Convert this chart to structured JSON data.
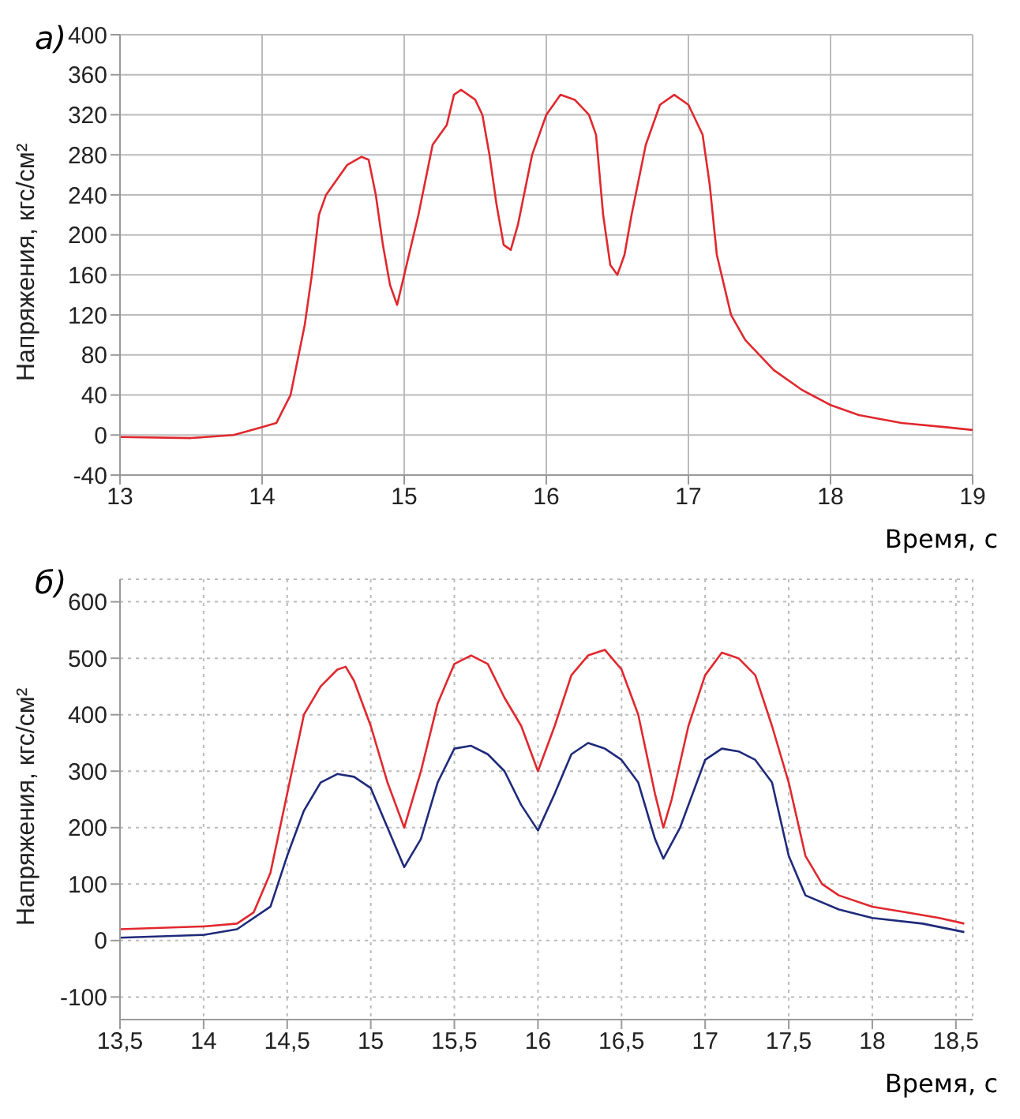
{
  "chart_data": [
    {
      "type": "line",
      "title": "а)",
      "xlabel": "Время, с",
      "ylabel": "Напряжения, кгс/см²",
      "xlim": [
        13,
        19
      ],
      "xticks": [
        13,
        14,
        15,
        16,
        17,
        18,
        19
      ],
      "ylim": [
        -40,
        400
      ],
      "yticks": [
        -40,
        0,
        40,
        80,
        120,
        160,
        200,
        240,
        280,
        320,
        360,
        400
      ],
      "grid": true,
      "marker": "none",
      "series": [
        {
          "color": "#e0282e",
          "x": [
            13.0,
            13.5,
            13.8,
            14.0,
            14.1,
            14.2,
            14.3,
            14.35,
            14.4,
            14.45,
            14.5,
            14.6,
            14.7,
            14.75,
            14.8,
            14.85,
            14.9,
            14.95,
            15.0,
            15.1,
            15.2,
            15.3,
            15.35,
            15.4,
            15.5,
            15.55,
            15.6,
            15.65,
            15.7,
            15.75,
            15.8,
            15.9,
            16.0,
            16.1,
            16.2,
            16.3,
            16.35,
            16.4,
            16.45,
            16.5,
            16.55,
            16.6,
            16.7,
            16.8,
            16.9,
            17.0,
            17.1,
            17.15,
            17.2,
            17.3,
            17.4,
            17.5,
            17.6,
            17.8,
            18.0,
            18.2,
            18.5,
            18.8,
            19.0
          ],
          "values": [
            -2,
            -3,
            0,
            8,
            12,
            40,
            110,
            160,
            220,
            240,
            250,
            270,
            278,
            275,
            240,
            190,
            150,
            130,
            160,
            220,
            290,
            310,
            340,
            345,
            335,
            320,
            280,
            230,
            190,
            185,
            210,
            280,
            320,
            340,
            335,
            320,
            300,
            220,
            170,
            160,
            180,
            220,
            290,
            330,
            340,
            330,
            300,
            250,
            180,
            120,
            95,
            80,
            65,
            45,
            30,
            20,
            12,
            8,
            5
          ]
        }
      ]
    },
    {
      "type": "line",
      "title": "б)",
      "xlabel": "Время, с",
      "ylabel": "Напряжения, кгс/см²",
      "xlim": [
        13.5,
        18.6
      ],
      "xticks": [
        {
          "value": 13.5,
          "label": "13,5"
        },
        14,
        {
          "value": 14.5,
          "label": "14,5"
        },
        15,
        {
          "value": 15.5,
          "label": "15,5"
        },
        16,
        {
          "value": 16.5,
          "label": "16,5"
        },
        17,
        {
          "value": 17.5,
          "label": "17,5"
        },
        18,
        {
          "value": 18.5,
          "label": "18,5"
        }
      ],
      "ylim": [
        -140,
        640
      ],
      "yticks": [
        -100,
        0,
        100,
        200,
        300,
        400,
        500,
        600
      ],
      "grid": true,
      "marker": "none",
      "series": [
        {
          "color": "#e0282e",
          "x": [
            13.5,
            14.0,
            14.2,
            14.3,
            14.4,
            14.5,
            14.6,
            14.7,
            14.8,
            14.85,
            14.9,
            15.0,
            15.1,
            15.2,
            15.3,
            15.4,
            15.5,
            15.6,
            15.7,
            15.8,
            15.9,
            16.0,
            16.1,
            16.2,
            16.3,
            16.4,
            16.5,
            16.6,
            16.7,
            16.75,
            16.8,
            16.9,
            17.0,
            17.1,
            17.2,
            17.3,
            17.4,
            17.5,
            17.6,
            17.7,
            17.8,
            18.0,
            18.2,
            18.4,
            18.55
          ],
          "values": [
            20,
            25,
            30,
            50,
            120,
            260,
            400,
            450,
            480,
            485,
            460,
            380,
            280,
            200,
            300,
            420,
            490,
            505,
            490,
            430,
            380,
            300,
            380,
            470,
            505,
            515,
            480,
            400,
            260,
            200,
            250,
            380,
            470,
            510,
            500,
            470,
            380,
            280,
            150,
            100,
            80,
            60,
            50,
            40,
            30
          ]
        },
        {
          "color": "#1f2a7a",
          "x": [
            13.5,
            14.0,
            14.2,
            14.4,
            14.5,
            14.6,
            14.7,
            14.8,
            14.9,
            15.0,
            15.1,
            15.2,
            15.3,
            15.4,
            15.5,
            15.6,
            15.7,
            15.8,
            15.9,
            16.0,
            16.1,
            16.2,
            16.3,
            16.4,
            16.5,
            16.6,
            16.7,
            16.75,
            16.85,
            17.0,
            17.1,
            17.2,
            17.3,
            17.4,
            17.5,
            17.6,
            17.8,
            18.0,
            18.3,
            18.55
          ],
          "values": [
            5,
            10,
            20,
            60,
            150,
            230,
            280,
            295,
            290,
            270,
            200,
            130,
            180,
            280,
            340,
            345,
            330,
            300,
            240,
            195,
            260,
            330,
            350,
            340,
            320,
            280,
            180,
            145,
            200,
            320,
            340,
            335,
            320,
            280,
            150,
            80,
            55,
            40,
            30,
            15
          ]
        }
      ]
    }
  ]
}
